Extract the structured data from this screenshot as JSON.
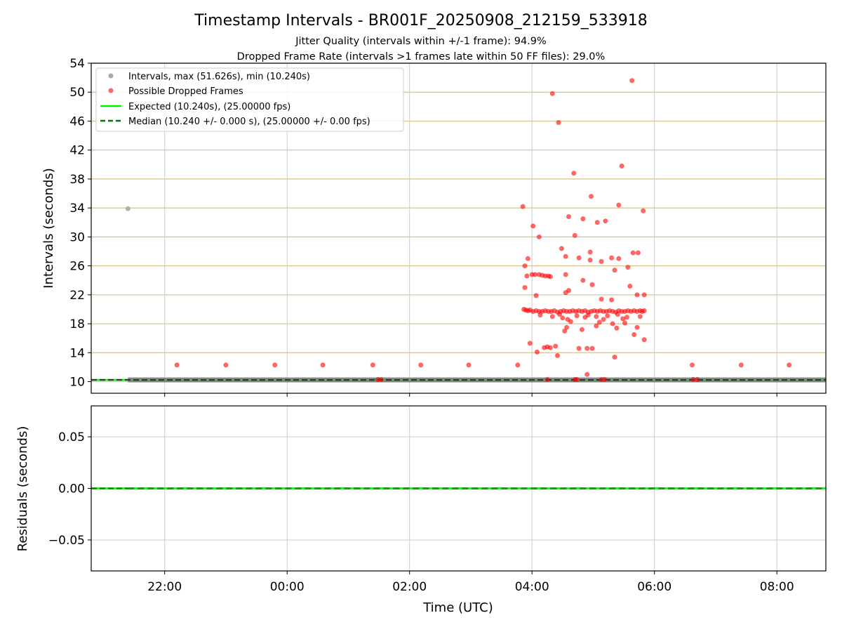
{
  "figure": {
    "title": "Timestamp Intervals - BR001F_20250908_212159_533918",
    "subtitle_1": "Jitter Quality (intervals within +/-1 frame): 94.9%",
    "subtitle_2": "Dropped Frame Rate (intervals >1 frames late within 50 FF files): 29.0%"
  },
  "chart_data": [
    {
      "type": "scatter",
      "ylabel": "Intervals (seconds)",
      "xlim": [
        "2025-09-08T20:48",
        "2025-09-09T08:48"
      ],
      "ylim": [
        8.4,
        54
      ],
      "yticks": [
        10,
        14,
        18,
        22,
        26,
        30,
        34,
        38,
        42,
        46,
        50,
        54
      ],
      "grid": true,
      "legend_placement": "top-left",
      "legend": [
        {
          "label": "Intervals, max (51.626s), min (10.240s)",
          "marker": "dot",
          "color": "#a9a9a9"
        },
        {
          "label": "Possible Dropped Frames",
          "marker": "dot",
          "color": "#ff0000"
        },
        {
          "label": "Expected (10.240s), (25.00000 fps)",
          "marker": "solid-line",
          "color": "#00ee00"
        },
        {
          "label": "Median (10.240 +/- 0.000 s), (25.00000 +/- 0.00 fps)",
          "marker": "dashed-line",
          "color": "#007700"
        }
      ],
      "expected_interval": 10.24,
      "median_interval": 10.24,
      "normal_intervals": {
        "value": 10.24,
        "from": "21:24",
        "to": "08:48",
        "color": "#777777"
      },
      "series": [
        {
          "name": "Intervals, max (51.626s), min (10.240s)",
          "color": "#a9a9a9",
          "points": [
            [
              "21:24",
              33.9
            ]
          ]
        },
        {
          "name": "Possible Dropped Frames",
          "color": "#ff0000",
          "points": [
            [
              "22:12",
              12.3
            ],
            [
              "23:00",
              12.3
            ],
            [
              "23:48",
              12.3
            ],
            [
              "00:35",
              12.3
            ],
            [
              "01:24",
              12.3
            ],
            [
              "02:11",
              12.3
            ],
            [
              "02:58",
              12.3
            ],
            [
              "03:46",
              12.3
            ],
            [
              "06:37",
              12.3
            ],
            [
              "07:25",
              12.3
            ],
            [
              "08:12",
              12.3
            ],
            [
              "01:29",
              10.3
            ],
            [
              "01:32",
              10.3
            ],
            [
              "04:15",
              10.3
            ],
            [
              "04:42",
              10.3
            ],
            [
              "04:44",
              10.3
            ],
            [
              "05:08",
              10.3
            ],
            [
              "05:11",
              10.3
            ],
            [
              "06:38",
              10.3
            ],
            [
              "06:42",
              10.3
            ],
            [
              "04:20",
              49.8
            ],
            [
              "04:26",
              45.8
            ],
            [
              "04:41",
              38.8
            ],
            [
              "05:38",
              51.6
            ],
            [
              "05:28",
              39.8
            ],
            [
              "04:58",
              35.6
            ],
            [
              "05:25",
              34.4
            ],
            [
              "05:49",
              33.6
            ],
            [
              "03:51",
              34.2
            ],
            [
              "04:36",
              32.8
            ],
            [
              "05:04",
              32.0
            ],
            [
              "05:12",
              32.2
            ],
            [
              "04:50",
              32.5
            ],
            [
              "04:01",
              31.5
            ],
            [
              "04:07",
              30.0
            ],
            [
              "04:42",
              30.2
            ],
            [
              "04:29",
              28.4
            ],
            [
              "04:57",
              27.9
            ],
            [
              "05:39",
              27.8
            ],
            [
              "05:44",
              27.8
            ],
            [
              "03:56",
              27.0
            ],
            [
              "04:46",
              27.1
            ],
            [
              "04:33",
              27.3
            ],
            [
              "04:57",
              26.8
            ],
            [
              "05:08",
              26.6
            ],
            [
              "05:18",
              27.1
            ],
            [
              "05:25",
              27.0
            ],
            [
              "03:53",
              26.0
            ],
            [
              "05:34",
              25.8
            ],
            [
              "05:21",
              25.4
            ],
            [
              "04:00",
              24.8
            ],
            [
              "04:03",
              24.8
            ],
            [
              "04:07",
              24.8
            ],
            [
              "04:10",
              24.7
            ],
            [
              "04:13",
              24.6
            ],
            [
              "04:16",
              24.6
            ],
            [
              "04:18",
              24.5
            ],
            [
              "03:55",
              24.6
            ],
            [
              "04:33",
              24.8
            ],
            [
              "04:50",
              24.0
            ],
            [
              "04:59",
              23.4
            ],
            [
              "05:36",
              23.2
            ],
            [
              "03:53",
              23.0
            ],
            [
              "04:36",
              22.6
            ],
            [
              "04:33",
              22.3
            ],
            [
              "05:43",
              22.0
            ],
            [
              "05:50",
              22.0
            ],
            [
              "04:04",
              21.9
            ],
            [
              "05:08",
              21.4
            ],
            [
              "05:18",
              21.3
            ],
            [
              "03:52",
              20.0
            ],
            [
              "03:54",
              19.9
            ],
            [
              "03:56",
              19.8
            ],
            [
              "03:58",
              19.9
            ],
            [
              "04:01",
              19.7
            ],
            [
              "04:04",
              19.8
            ],
            [
              "04:07",
              19.7
            ],
            [
              "04:10",
              19.7
            ],
            [
              "04:13",
              19.8
            ],
            [
              "04:16",
              19.7
            ],
            [
              "04:19",
              19.7
            ],
            [
              "04:22",
              19.8
            ],
            [
              "04:25",
              19.6
            ],
            [
              "04:28",
              19.7
            ],
            [
              "04:31",
              19.8
            ],
            [
              "04:34",
              19.7
            ],
            [
              "04:37",
              19.7
            ],
            [
              "04:40",
              19.8
            ],
            [
              "04:43",
              19.7
            ],
            [
              "04:46",
              19.8
            ],
            [
              "04:49",
              19.7
            ],
            [
              "04:52",
              19.8
            ],
            [
              "04:55",
              19.6
            ],
            [
              "04:58",
              19.7
            ],
            [
              "05:01",
              19.8
            ],
            [
              "05:04",
              19.7
            ],
            [
              "05:07",
              19.8
            ],
            [
              "05:10",
              19.7
            ],
            [
              "05:13",
              19.7
            ],
            [
              "05:16",
              19.8
            ],
            [
              "05:19",
              19.7
            ],
            [
              "05:22",
              19.6
            ],
            [
              "05:25",
              19.8
            ],
            [
              "05:28",
              19.7
            ],
            [
              "05:31",
              19.7
            ],
            [
              "05:34",
              19.8
            ],
            [
              "05:37",
              19.7
            ],
            [
              "05:40",
              19.8
            ],
            [
              "05:43",
              19.7
            ],
            [
              "05:46",
              19.8
            ],
            [
              "05:48",
              19.7
            ],
            [
              "05:50",
              19.8
            ],
            [
              "04:08",
              19.2
            ],
            [
              "04:20",
              19.0
            ],
            [
              "04:27",
              19.3
            ],
            [
              "04:44",
              19.1
            ],
            [
              "04:55",
              19.2
            ],
            [
              "05:03",
              19.0
            ],
            [
              "05:14",
              19.1
            ],
            [
              "05:24",
              19.3
            ],
            [
              "05:33",
              18.9
            ],
            [
              "05:46",
              19.0
            ],
            [
              "04:30",
              18.8
            ],
            [
              "04:35",
              18.6
            ],
            [
              "04:52",
              18.9
            ],
            [
              "05:10",
              18.6
            ],
            [
              "05:29",
              18.7
            ],
            [
              "04:38",
              18.3
            ],
            [
              "05:06",
              18.2
            ],
            [
              "05:19",
              18.0
            ],
            [
              "05:31",
              18.1
            ],
            [
              "04:34",
              17.5
            ],
            [
              "05:03",
              17.7
            ],
            [
              "05:23",
              17.4
            ],
            [
              "05:43",
              17.5
            ],
            [
              "04:49",
              17.2
            ],
            [
              "04:32",
              17.0
            ],
            [
              "05:40",
              16.5
            ],
            [
              "05:50",
              15.8
            ],
            [
              "03:58",
              15.3
            ],
            [
              "04:12",
              14.7
            ],
            [
              "04:15",
              14.8
            ],
            [
              "04:18",
              14.7
            ],
            [
              "04:23",
              14.9
            ],
            [
              "04:05",
              14.1
            ],
            [
              "04:46",
              14.6
            ],
            [
              "04:54",
              14.6
            ],
            [
              "04:59",
              14.6
            ],
            [
              "04:25",
              13.6
            ],
            [
              "05:21",
              13.4
            ],
            [
              "04:54",
              11.0
            ]
          ]
        }
      ]
    },
    {
      "type": "line",
      "xlabel": "Time (UTC)",
      "ylabel": "Residuals (seconds)",
      "xlim": [
        "2025-09-08T20:48",
        "2025-09-09T08:48"
      ],
      "ylim": [
        -0.08,
        0.08
      ],
      "yticks": [
        "−0.05",
        "0.00",
        "0.05"
      ],
      "ytick_values": [
        -0.05,
        0.0,
        0.05
      ],
      "xticks": [
        "22:00",
        "00:00",
        "02:00",
        "04:00",
        "06:00",
        "08:00"
      ],
      "grid": true,
      "residual_value": 0.0
    }
  ]
}
